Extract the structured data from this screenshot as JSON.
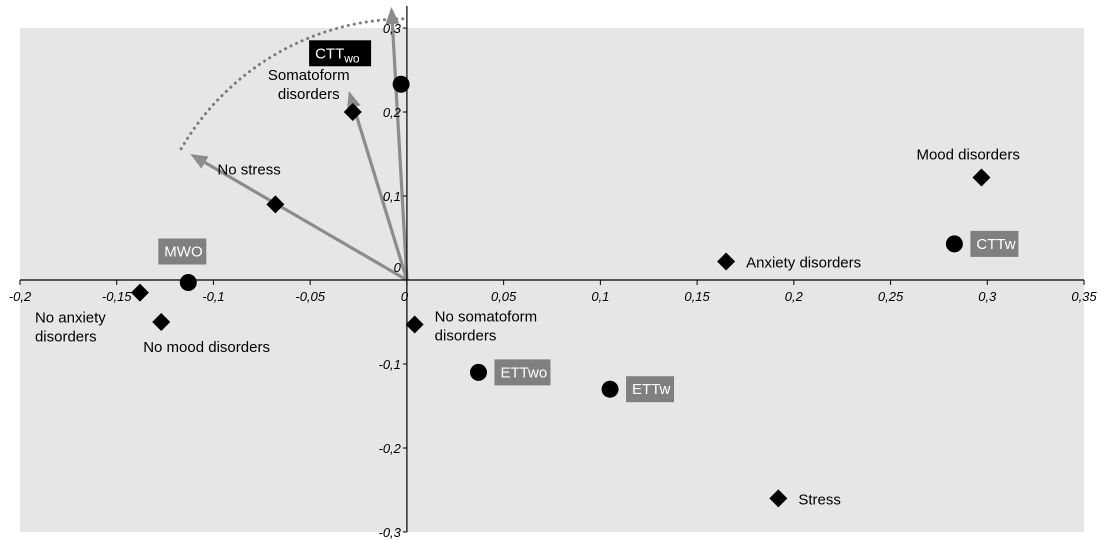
{
  "chart_data": {
    "type": "scatter",
    "xlim": [
      -0.2,
      0.35
    ],
    "ylim": [
      -0.3,
      0.3
    ],
    "grid": false,
    "plot_background": "#e6e6e6",
    "x_ticks": [
      {
        "value": -0.2,
        "label": "-0,2"
      },
      {
        "value": -0.15,
        "label": "-0,15"
      },
      {
        "value": -0.1,
        "label": "-0,1"
      },
      {
        "value": -0.05,
        "label": "-0,05"
      },
      {
        "value": 0,
        "label": "0"
      },
      {
        "value": 0.05,
        "label": "0,05"
      },
      {
        "value": 0.1,
        "label": "0,1"
      },
      {
        "value": 0.15,
        "label": "0,15"
      },
      {
        "value": 0.2,
        "label": "0,2"
      },
      {
        "value": 0.25,
        "label": "0,25"
      },
      {
        "value": 0.3,
        "label": "0,3"
      },
      {
        "value": 0.35,
        "label": "0,35"
      }
    ],
    "y_ticks": [
      {
        "value": 0.3,
        "label": "0,3"
      },
      {
        "value": 0.2,
        "label": "0,2"
      },
      {
        "value": 0.1,
        "label": "0,1"
      },
      {
        "value": 0,
        "label": "0"
      },
      {
        "value": -0.1,
        "label": "-0,1"
      },
      {
        "value": -0.2,
        "label": "-0,2"
      },
      {
        "value": -0.3,
        "label": "-0,3"
      }
    ],
    "diamonds": [
      {
        "lines": [
          "Somatoform",
          "disorders"
        ],
        "x": -0.028,
        "y": 0.2,
        "label_side": "left"
      },
      {
        "lines": [
          "No stress"
        ],
        "x": -0.068,
        "y": 0.09,
        "label_side": "above-left"
      },
      {
        "lines": [
          "Mood disorders"
        ],
        "x": 0.297,
        "y": 0.122,
        "label_side": "above"
      },
      {
        "lines": [
          "Anxiety disorders"
        ],
        "x": 0.165,
        "y": 0.022,
        "label_side": "right"
      },
      {
        "lines": [
          "No anxiety",
          "disorders"
        ],
        "x": -0.138,
        "y": -0.015,
        "label_side": "below-left"
      },
      {
        "lines": [
          "No mood disorders"
        ],
        "x": -0.127,
        "y": -0.05,
        "label_side": "below-right"
      },
      {
        "lines": [
          "No somatoform",
          "disorders"
        ],
        "x": 0.004,
        "y": -0.053,
        "label_side": "right"
      },
      {
        "lines": [
          "Stress"
        ],
        "x": 0.192,
        "y": -0.26,
        "label_side": "right"
      }
    ],
    "circles": [
      {
        "label": "CTT",
        "sub": "wo",
        "x": -0.003,
        "y": 0.233,
        "box_color": "#000000"
      },
      {
        "label": "MWO",
        "sub": "",
        "x": -0.113,
        "y": -0.003,
        "box_color": "#808080"
      },
      {
        "label": "CTTw",
        "sub": "",
        "x": 0.283,
        "y": 0.043,
        "box_color": "#808080"
      },
      {
        "label": "ETTwo",
        "sub": "",
        "x": 0.037,
        "y": -0.11,
        "box_color": "#808080"
      },
      {
        "label": "ETTw",
        "sub": "",
        "x": 0.105,
        "y": -0.13,
        "box_color": "#808080"
      }
    ],
    "vectors": [
      {
        "x": -0.112,
        "y": 0.15
      },
      {
        "x": -0.03,
        "y": 0.225
      },
      {
        "x": -0.008,
        "y": 0.325
      }
    ],
    "arc_radii": [
      0.135,
      0.185
    ],
    "vector_color": "#8c8c8c"
  }
}
